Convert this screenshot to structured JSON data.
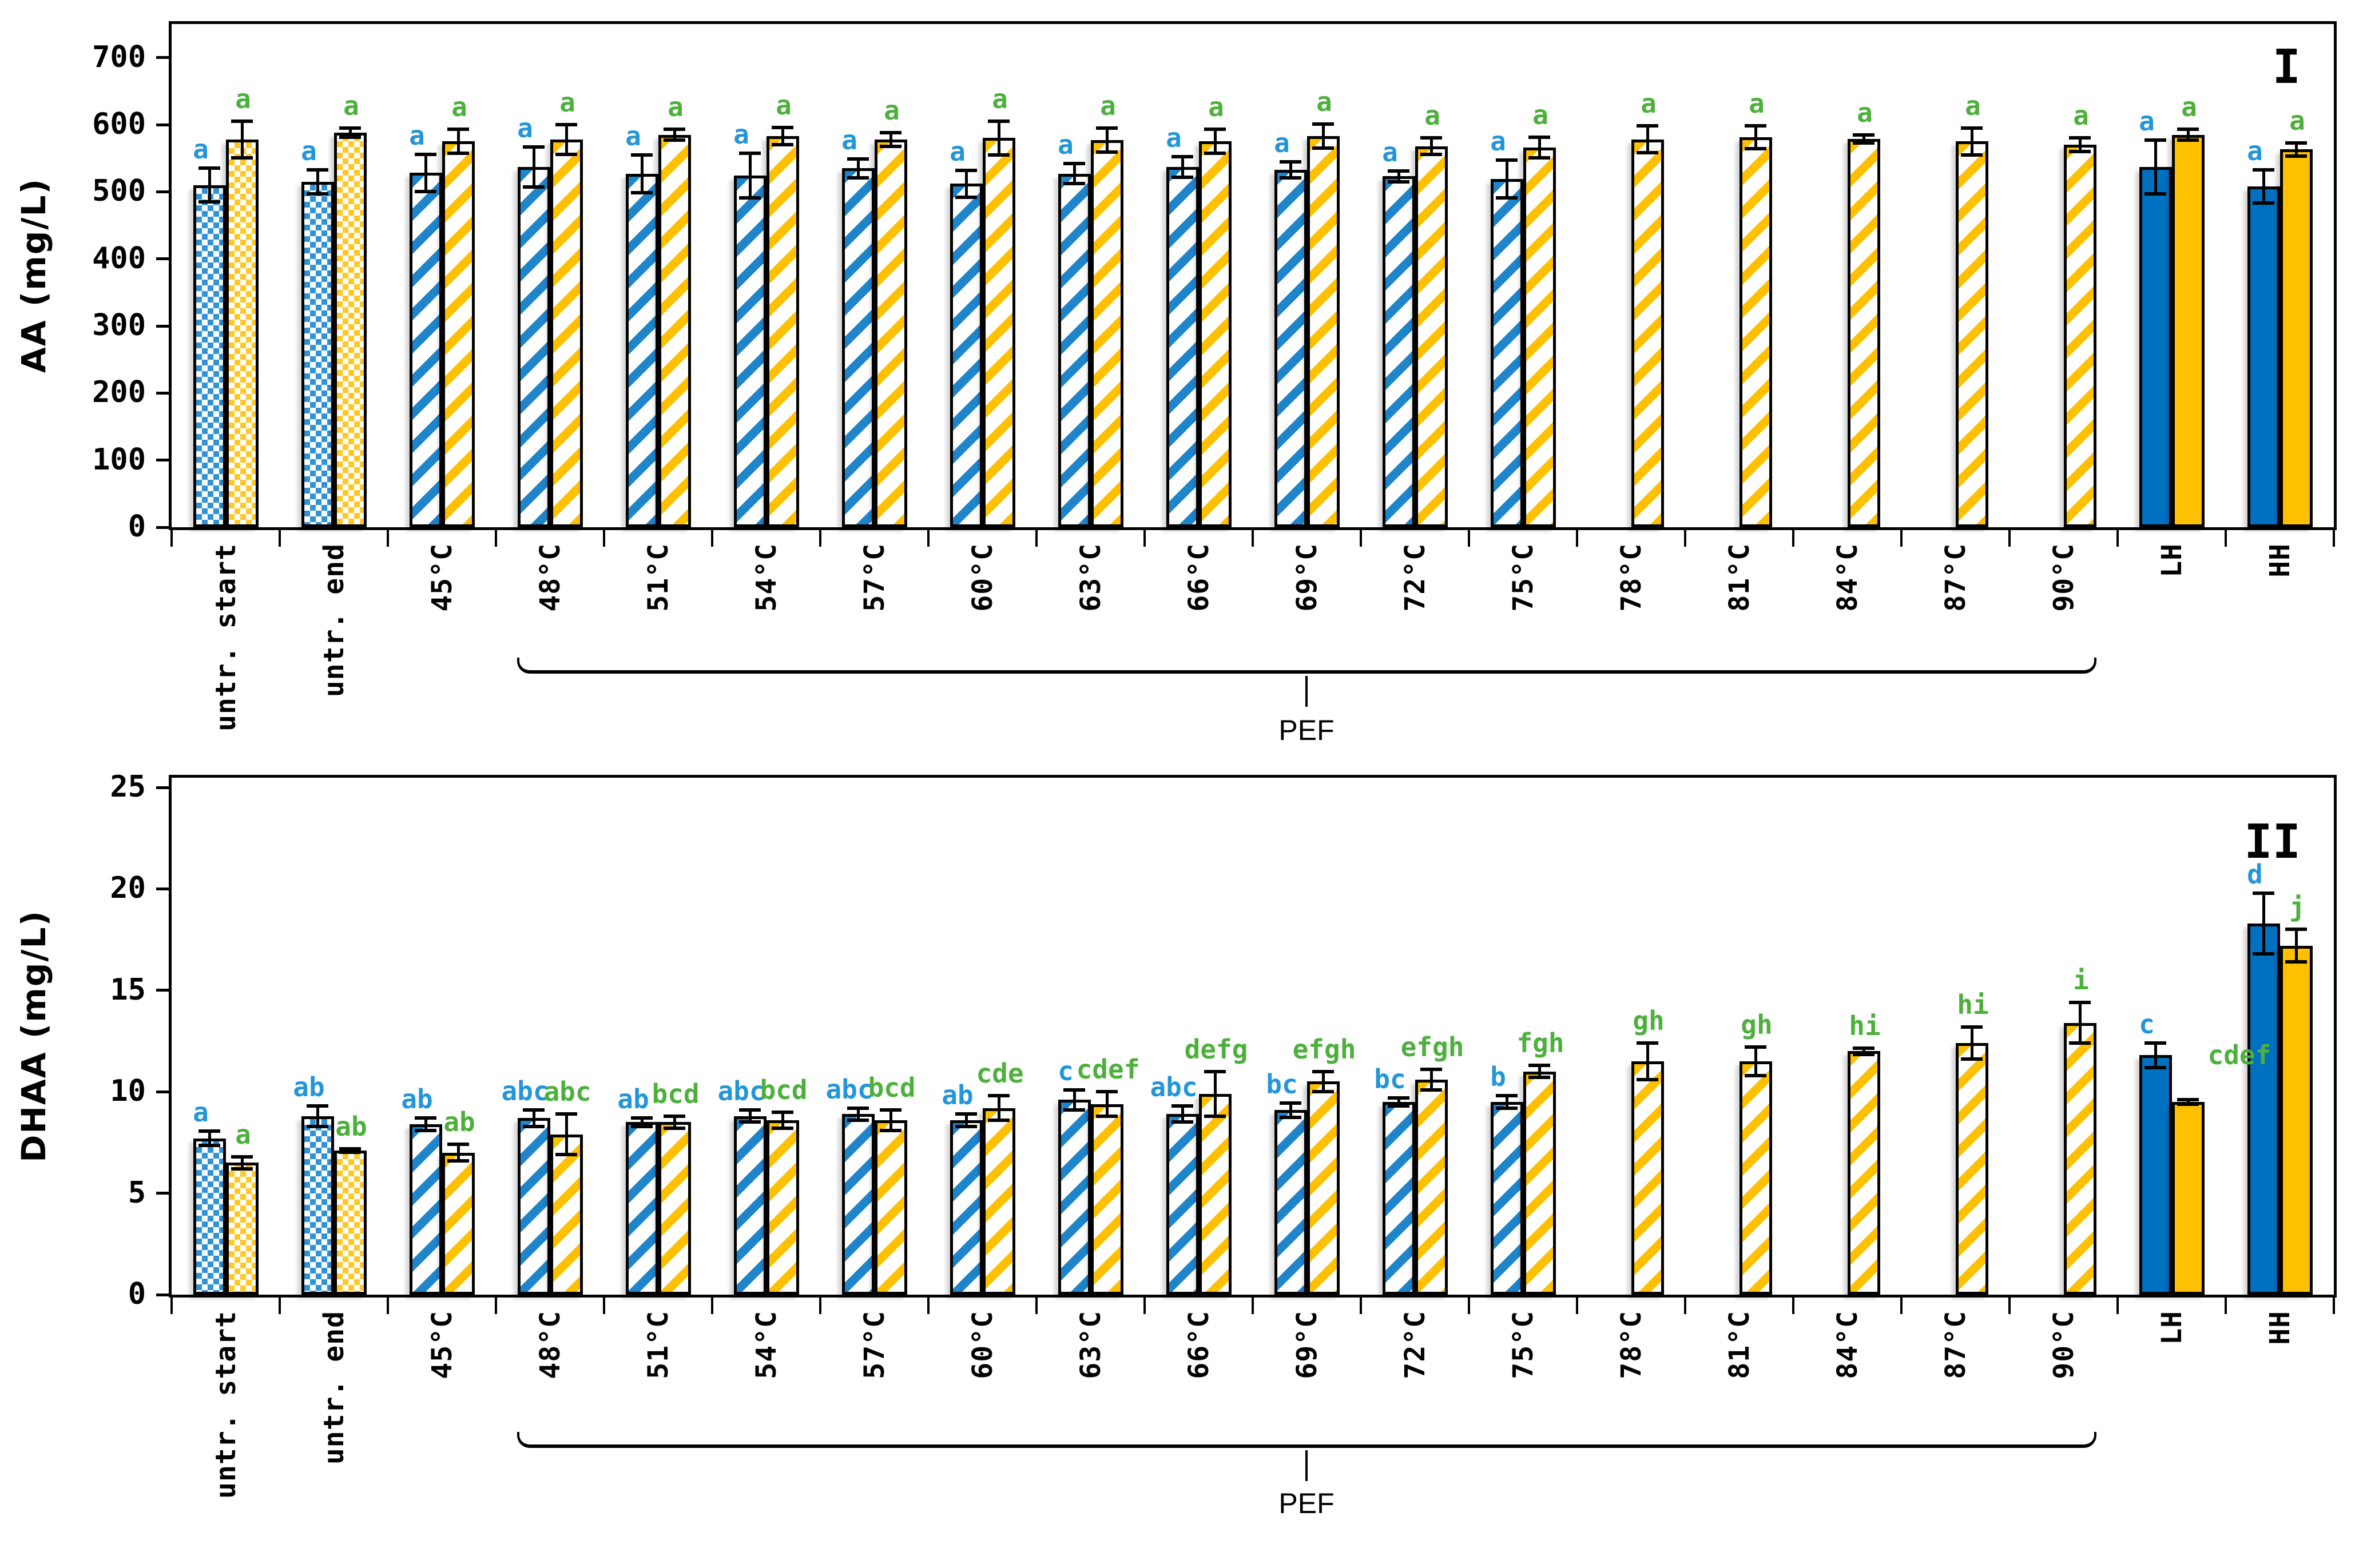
{
  "figure": {
    "background": "#ffffff"
  },
  "colors": {
    "bar_blue_solid": "#0070C0",
    "bar_yellow_solid": "#FFC000",
    "bar_blue_pattern": "#1F85CB",
    "bar_yellow_pattern": "#FFC000",
    "letter_blue": "#2396D8",
    "letter_green": "#4DB03C",
    "axis": "#000000"
  },
  "chart_data": [
    {
      "type": "bar",
      "panel_label": "I",
      "ylabel": "AA (mg/L)",
      "xlabel": "",
      "ylim": [
        0,
        750
      ],
      "yticks": [
        0,
        100,
        200,
        300,
        400,
        500,
        600,
        700
      ],
      "grid": false,
      "legend_position": "none",
      "categories": [
        "untr. start",
        "untr. end",
        "45°C",
        "48°C",
        "51°C",
        "54°C",
        "57°C",
        "60°C",
        "63°C",
        "66°C",
        "69°C",
        "72°C",
        "75°C",
        "78°C",
        "81°C",
        "84°C",
        "87°C",
        "90°C",
        "LH",
        "HH"
      ],
      "bar_patterns": [
        "checker",
        "checker",
        "stripe",
        "stripe",
        "stripe",
        "stripe",
        "stripe",
        "stripe",
        "stripe",
        "stripe",
        "stripe",
        "stripe",
        "stripe",
        "stripe",
        "stripe",
        "stripe",
        "stripe",
        "stripe",
        "solid",
        "solid"
      ],
      "series": [
        {
          "name": "blue",
          "values": [
            510,
            515,
            528,
            537,
            527,
            524,
            535,
            512,
            527,
            537,
            533,
            523,
            519,
            null,
            null,
            null,
            null,
            null,
            537,
            508
          ],
          "errors": [
            25,
            18,
            28,
            30,
            28,
            33,
            14,
            20,
            15,
            15,
            12,
            8,
            28,
            null,
            null,
            null,
            null,
            null,
            40,
            25
          ],
          "letters": [
            "a",
            "a",
            "a",
            "a",
            "a",
            "a",
            "a",
            "a",
            "a",
            "a",
            "a",
            "a",
            "a",
            null,
            null,
            null,
            null,
            null,
            "a",
            "a"
          ],
          "letter_sides": [
            null,
            null,
            null,
            null,
            null,
            null,
            null,
            null,
            null,
            null,
            null,
            null,
            null,
            null,
            null,
            null,
            null,
            null,
            null,
            null
          ]
        },
        {
          "name": "yellow",
          "values": [
            578,
            588,
            575,
            578,
            585,
            583,
            578,
            580,
            577,
            575,
            583,
            568,
            566,
            578,
            581,
            579,
            575,
            570,
            585,
            563
          ],
          "errors": [
            27,
            7,
            18,
            22,
            8,
            13,
            10,
            25,
            18,
            18,
            18,
            12,
            15,
            20,
            17,
            6,
            20,
            10,
            8,
            10
          ],
          "letters": [
            "a",
            "a",
            "a",
            "a",
            "a",
            "a",
            "a",
            "a",
            "a",
            "a",
            "a",
            "a",
            "a",
            "a",
            "a",
            "a",
            "a",
            "a",
            "a",
            "a"
          ],
          "letter_sides": [
            null,
            null,
            null,
            null,
            null,
            null,
            null,
            null,
            null,
            null,
            null,
            null,
            null,
            null,
            null,
            null,
            null,
            null,
            null,
            null
          ]
        }
      ],
      "bracket": {
        "label": "PEF",
        "from_category": "48°C",
        "to_category": "90°C",
        "from_index": 3,
        "to_index": 17
      }
    },
    {
      "type": "bar",
      "panel_label": "II",
      "ylabel": "DHAA (mg/L)",
      "xlabel": "",
      "ylim": [
        0,
        25.48
      ],
      "yticks": [
        0,
        5,
        10,
        15,
        20,
        25
      ],
      "grid": false,
      "legend_position": "none",
      "categories": [
        "untr. start",
        "untr. end",
        "45°C",
        "48°C",
        "51°C",
        "54°C",
        "57°C",
        "60°C",
        "63°C",
        "66°C",
        "69°C",
        "72°C",
        "75°C",
        "78°C",
        "81°C",
        "84°C",
        "87°C",
        "90°C",
        "LH",
        "HH"
      ],
      "bar_patterns": [
        "checker",
        "checker",
        "stripe",
        "stripe",
        "stripe",
        "stripe",
        "stripe",
        "stripe",
        "stripe",
        "stripe",
        "stripe",
        "stripe",
        "stripe",
        "stripe",
        "stripe",
        "stripe",
        "stripe",
        "stripe",
        "solid",
        "solid"
      ],
      "series": [
        {
          "name": "blue",
          "values": [
            7.7,
            8.8,
            8.4,
            8.7,
            8.5,
            8.8,
            8.9,
            8.6,
            9.6,
            8.9,
            9.1,
            9.5,
            9.5,
            null,
            null,
            null,
            null,
            null,
            11.8,
            18.3
          ],
          "errors": [
            0.35,
            0.5,
            0.3,
            0.4,
            0.2,
            0.3,
            0.3,
            0.3,
            0.5,
            0.4,
            0.35,
            0.2,
            0.3,
            null,
            null,
            null,
            null,
            null,
            0.6,
            1.5
          ],
          "letters": [
            "a",
            "ab",
            "ab",
            "abc",
            "ab",
            "abc",
            "abc",
            "ab",
            "c",
            "abc",
            "bc",
            "bc",
            "b",
            null,
            null,
            null,
            null,
            null,
            "c",
            "d"
          ],
          "letter_sides": [
            null,
            null,
            null,
            null,
            null,
            null,
            null,
            null,
            null,
            null,
            null,
            null,
            null,
            null,
            null,
            null,
            null,
            null,
            null,
            null
          ]
        },
        {
          "name": "yellow",
          "values": [
            6.5,
            7.1,
            7.0,
            7.9,
            8.5,
            8.6,
            8.6,
            9.2,
            9.4,
            9.9,
            10.5,
            10.6,
            11.0,
            11.5,
            11.5,
            12.0,
            12.4,
            13.4,
            9.5,
            17.2
          ],
          "errors": [
            0.3,
            0.08,
            0.4,
            1.0,
            0.3,
            0.4,
            0.5,
            0.6,
            0.6,
            1.1,
            0.5,
            0.5,
            0.3,
            0.9,
            0.7,
            0.15,
            0.8,
            1.0,
            0.12,
            0.8
          ],
          "letters": [
            "a",
            "ab",
            "ab",
            "abc",
            "bcd",
            "bcd",
            "bcd",
            "cde",
            "cdef",
            "defg",
            "efgh",
            "efgh",
            "fgh",
            "gh",
            "gh",
            "hi",
            "hi",
            "i",
            "cdef",
            "j"
          ],
          "letter_sides": [
            null,
            null,
            null,
            null,
            null,
            null,
            null,
            null,
            null,
            null,
            null,
            null,
            null,
            null,
            null,
            null,
            null,
            null,
            "right",
            null
          ]
        }
      ],
      "bracket": {
        "label": "PEF",
        "from_category": "48°C",
        "to_category": "90°C",
        "from_index": 3,
        "to_index": 17
      }
    }
  ]
}
